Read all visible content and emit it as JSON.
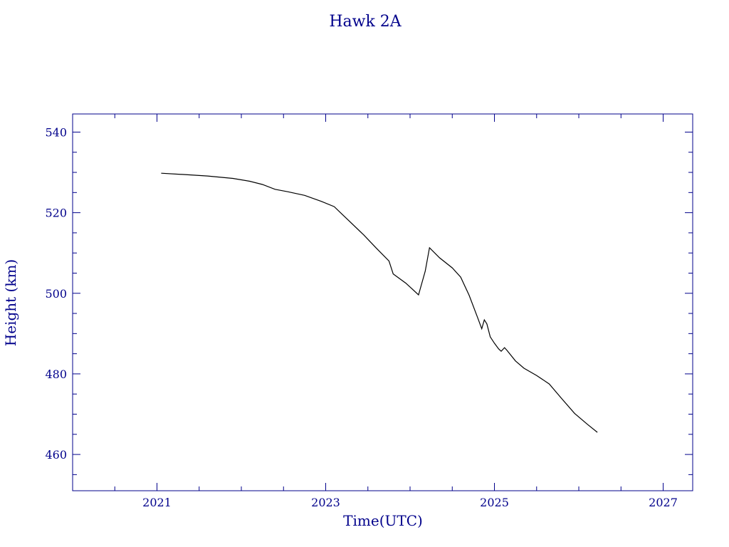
{
  "chart_data": {
    "type": "line",
    "title": "Hawk 2A",
    "xlabel": "Time(UTC)",
    "ylabel": "Height (km)",
    "xlim": [
      2020.0,
      2027.35
    ],
    "ylim": [
      451.0,
      544.5
    ],
    "x_ticks": [
      2021,
      2023,
      2025,
      2027
    ],
    "y_ticks": [
      460,
      480,
      500,
      520,
      540
    ],
    "x_minor_step": 0.5,
    "y_minor_step": 5,
    "grid": false,
    "series": [
      {
        "color": "#000000",
        "x": [
          2021.05,
          2021.3,
          2021.6,
          2021.9,
          2022.1,
          2022.25,
          2022.4,
          2022.55,
          2022.75,
          2022.95,
          2023.1,
          2023.25,
          2023.45,
          2023.6,
          2023.75,
          2023.8,
          2023.95,
          2024.1,
          2024.18,
          2024.23,
          2024.35,
          2024.5,
          2024.6,
          2024.7,
          2024.8,
          2024.85,
          2024.88,
          2024.91,
          2024.95,
          2025.0,
          2025.05,
          2025.08,
          2025.12,
          2025.15,
          2025.25,
          2025.35,
          2025.5,
          2025.65,
          2025.8,
          2025.95,
          2026.1,
          2026.22
        ],
        "y": [
          529.8,
          529.5,
          529.1,
          528.5,
          527.8,
          527.0,
          525.8,
          525.2,
          524.3,
          522.8,
          521.5,
          518.5,
          514.5,
          511.2,
          508.0,
          504.8,
          502.5,
          499.6,
          505.5,
          511.3,
          508.8,
          506.3,
          504.0,
          499.5,
          494.0,
          491.2,
          493.4,
          492.4,
          489.2,
          487.6,
          486.2,
          485.6,
          486.5,
          485.8,
          483.2,
          481.4,
          479.6,
          477.5,
          473.8,
          470.2,
          467.5,
          465.5
        ]
      }
    ]
  }
}
